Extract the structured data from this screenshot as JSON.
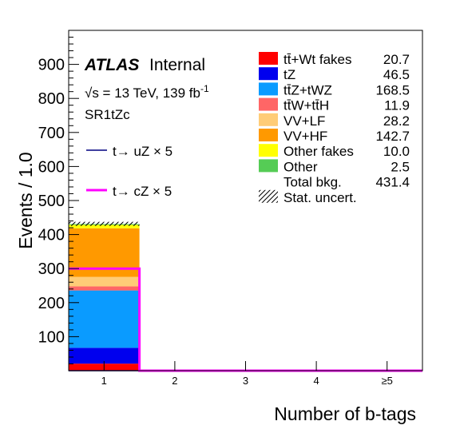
{
  "chart_data": {
    "type": "bar",
    "stacked": true,
    "title": "",
    "xlabel": "Number of b-tags",
    "ylabel": "Events / 1.0",
    "categories": [
      "1",
      "2",
      "3",
      "4",
      "≥5"
    ],
    "xlim": [
      0.5,
      5.5
    ],
    "ylim": [
      0,
      1000
    ],
    "yticks": [
      100,
      200,
      300,
      400,
      500,
      600,
      700,
      800,
      900
    ],
    "grid": false,
    "legend_position": "top-right",
    "labels": {
      "atlas": "ATLAS",
      "internal": "Internal",
      "energy": "√s = 13 TeV, 139 fb",
      "energy_sup": "-1",
      "region": "SR1tZc"
    },
    "series": [
      {
        "name": "tt̄+Wt fakes",
        "yield_label": "20.7",
        "color": "#ff0000",
        "values": [
          20.7,
          0,
          0,
          0,
          0
        ]
      },
      {
        "name": "tZ",
        "yield_label": "46.5",
        "color": "#0000ee",
        "values": [
          46.5,
          0,
          0,
          0,
          0
        ]
      },
      {
        "name": "tt̄Z+tWZ",
        "yield_label": "168.5",
        "color": "#0a9bff",
        "values": [
          168.5,
          0,
          0,
          0,
          0
        ]
      },
      {
        "name": "tt̄W+tt̄H",
        "yield_label": "11.9",
        "color": "#ff6666",
        "values": [
          11.9,
          0,
          0,
          0,
          0
        ]
      },
      {
        "name": "VV+LF",
        "yield_label": "28.2",
        "color": "#ffcc77",
        "values": [
          28.2,
          0,
          0,
          0,
          0
        ]
      },
      {
        "name": "VV+HF",
        "yield_label": "142.7",
        "color": "#ff9900",
        "values": [
          142.7,
          0,
          0,
          0,
          0
        ]
      },
      {
        "name": "Other fakes",
        "yield_label": "10.0",
        "color": "#ffff00",
        "values": [
          10.0,
          0,
          0,
          0,
          0
        ]
      },
      {
        "name": "Other",
        "yield_label": "2.5",
        "color": "#55cc55",
        "values": [
          2.5,
          0,
          0,
          0,
          0
        ]
      }
    ],
    "total": {
      "name": "Total bkg.",
      "yield_label": "431.4",
      "values": [
        431.4,
        0,
        0,
        0,
        0
      ]
    },
    "uncertainty": {
      "name": "Stat. uncert.",
      "values": [
        6,
        0,
        0,
        0,
        0
      ]
    },
    "signals": [
      {
        "name": "t→ uZ × 5",
        "color": "#000080",
        "values": [
          0,
          0,
          0,
          0,
          0
        ]
      },
      {
        "name": "t→ cZ × 5",
        "color": "#ff00ff",
        "values": [
          300,
          0,
          0,
          0,
          0
        ]
      }
    ]
  }
}
